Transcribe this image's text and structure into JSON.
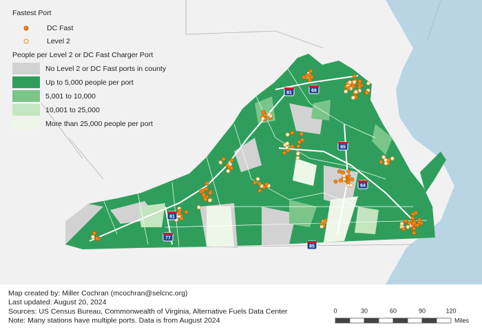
{
  "legend": {
    "fastest_port": {
      "title": "Fastest Port",
      "items": [
        "DC Fast",
        "Level 2"
      ]
    },
    "people": {
      "title": "People per Level 2 or DC Fast Charger Port",
      "items": [
        "No Level 2 or DC Fast ports in county",
        "Up to 5,000 people per port",
        "5,001 to 10,000",
        "10,001 to 25,000",
        "More than 25,000 people per port"
      ],
      "colors": [
        "#d2d2d2",
        "#2f9e5c",
        "#7cc58a",
        "#c3e5bf",
        "#eef6e8"
      ]
    }
  },
  "highways": [
    {
      "label": "81",
      "at": [
        420,
        133
      ]
    },
    {
      "label": "66",
      "at": [
        456,
        130
      ]
    },
    {
      "label": "95",
      "at": [
        498,
        212
      ]
    },
    {
      "label": "64",
      "at": [
        527,
        268
      ]
    },
    {
      "label": "81",
      "at": [
        250,
        313
      ]
    },
    {
      "label": "77",
      "at": [
        244,
        344
      ]
    },
    {
      "label": "85",
      "at": [
        453,
        356
      ]
    }
  ],
  "footer": [
    "Map created by: Miller Cochran (mcochran@selcnc.org)",
    "Last updated: August 20, 2024",
    "Sources: US Census Bureau, Commonwealth of Virginia, Alternative Fuels Data Center",
    "Note: Many stations have multiple ports. Data is from August 2024"
  ],
  "scale_bar": {
    "ticks": [
      0,
      30,
      60,
      90,
      120
    ],
    "unit": "Miles"
  }
}
